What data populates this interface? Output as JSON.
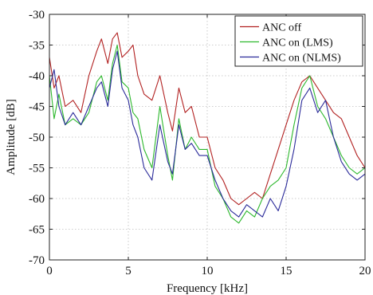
{
  "chart_data": {
    "type": "line",
    "xlabel": "Frequency [kHz]",
    "ylabel": "Amplitude [dB]",
    "xlim": [
      0,
      20
    ],
    "ylim": [
      -70,
      -30
    ],
    "xticks": [
      0,
      5,
      10,
      15,
      20
    ],
    "yticks": [
      -70,
      -65,
      -60,
      -55,
      -50,
      -45,
      -40,
      -35,
      -30
    ],
    "grid": true,
    "legend_position": "top-right",
    "series": [
      {
        "name": "ANC off",
        "color": "#b22222",
        "x": [
          0,
          0.3,
          0.6,
          1,
          1.5,
          2,
          2.5,
          3,
          3.3,
          3.7,
          4,
          4.3,
          4.6,
          5,
          5.3,
          5.6,
          6,
          6.5,
          7,
          7.5,
          7.8,
          8.2,
          8.6,
          9,
          9.5,
          10,
          10.5,
          11,
          11.5,
          12,
          12.5,
          13,
          13.5,
          14,
          14.5,
          15,
          15.5,
          16,
          16.5,
          17,
          17.5,
          18,
          18.5,
          19,
          19.5,
          20
        ],
        "y": [
          -37,
          -42,
          -40,
          -45,
          -44,
          -46,
          -40,
          -36,
          -34,
          -38,
          -34,
          -33,
          -37,
          -36,
          -35,
          -40,
          -43,
          -44,
          -40,
          -46,
          -49,
          -42,
          -46,
          -45,
          -50,
          -50,
          -55,
          -57,
          -60,
          -61,
          -60,
          -59,
          -60,
          -56,
          -52,
          -48,
          -44,
          -41,
          -40,
          -42,
          -44,
          -46,
          -47,
          -50,
          -53,
          -55
        ]
      },
      {
        "name": "ANC on (LMS)",
        "color": "#2db82d",
        "x": [
          0,
          0.3,
          0.6,
          1,
          1.5,
          2,
          2.5,
          3,
          3.3,
          3.7,
          4,
          4.3,
          4.6,
          5,
          5.3,
          5.6,
          6,
          6.5,
          7,
          7.5,
          7.8,
          8.2,
          8.6,
          9,
          9.5,
          10,
          10.5,
          11,
          11.5,
          12,
          12.5,
          13,
          13.5,
          14,
          14.5,
          15,
          15.5,
          16,
          16.5,
          17,
          17.5,
          18,
          18.5,
          19,
          19.5,
          20
        ],
        "y": [
          -40,
          -47,
          -43,
          -48,
          -47,
          -48,
          -46,
          -41,
          -40,
          -44,
          -38,
          -35,
          -41,
          -42,
          -46,
          -47,
          -52,
          -55,
          -45,
          -53,
          -57,
          -47,
          -52,
          -50,
          -52,
          -52,
          -58,
          -60,
          -63,
          -64,
          -62,
          -63,
          -60,
          -58,
          -57,
          -55,
          -48,
          -42,
          -40,
          -45,
          -47,
          -50,
          -53,
          -55,
          -56,
          -55
        ]
      },
      {
        "name": "ANC on (NLMS)",
        "color": "#2b2b9a",
        "x": [
          0,
          0.3,
          0.6,
          1,
          1.5,
          2,
          2.5,
          3,
          3.3,
          3.7,
          4,
          4.3,
          4.6,
          5,
          5.3,
          5.6,
          6,
          6.5,
          7,
          7.5,
          7.8,
          8.2,
          8.6,
          9,
          9.5,
          10,
          10.5,
          11,
          11.5,
          12,
          12.5,
          13,
          13.5,
          14,
          14.5,
          15,
          15.5,
          16,
          16.5,
          17,
          17.5,
          18,
          18.5,
          19,
          19.5,
          20
        ],
        "y": [
          -42,
          -39,
          -45,
          -48,
          -46,
          -48,
          -45,
          -42,
          -41,
          -45,
          -39,
          -36,
          -42,
          -44,
          -48,
          -50,
          -55,
          -57,
          -48,
          -54,
          -56,
          -48,
          -52,
          -51,
          -53,
          -53,
          -57,
          -60,
          -62,
          -63,
          -61,
          -62,
          -63,
          -60,
          -62,
          -58,
          -52,
          -44,
          -42,
          -46,
          -44,
          -50,
          -54,
          -56,
          -57,
          -56
        ]
      }
    ]
  }
}
